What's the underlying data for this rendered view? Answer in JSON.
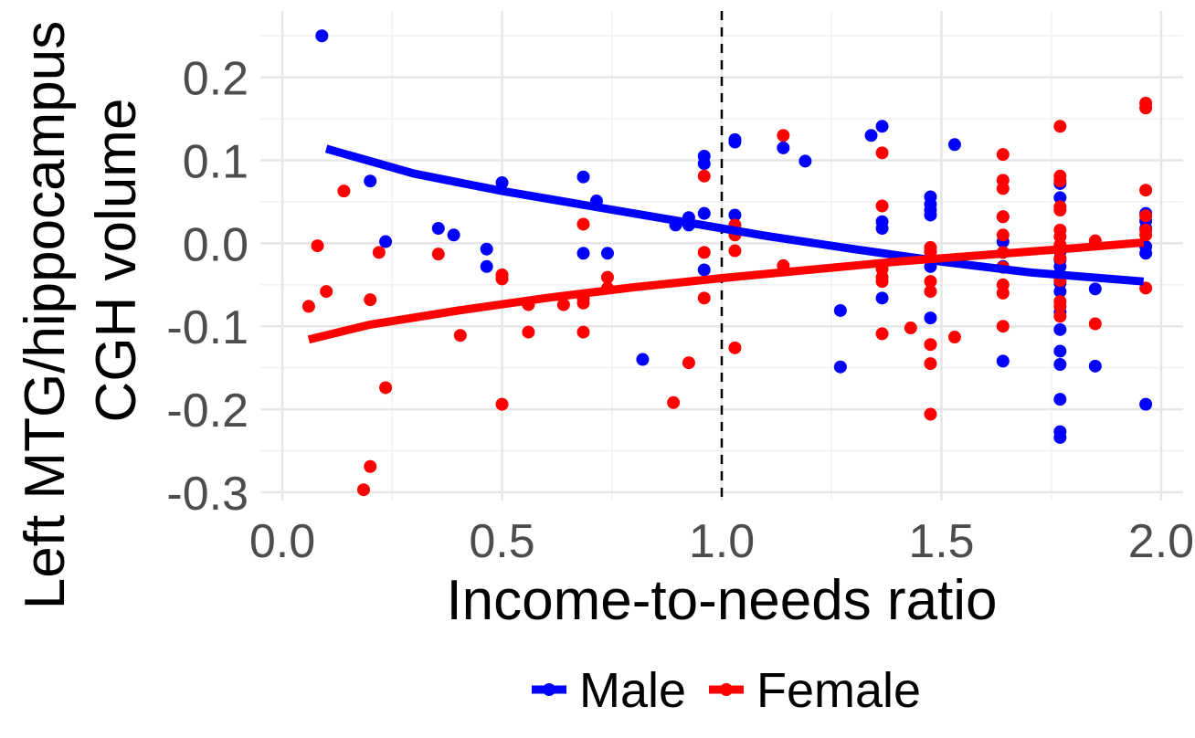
{
  "chart_data": {
    "type": "scatter",
    "title": "",
    "xlabel": "Income-to-needs ratio",
    "ylabel_lines": [
      "Left MTG/hippocampus",
      "CGH volume"
    ],
    "xlim": [
      -0.05,
      2.05
    ],
    "ylim": [
      -0.31,
      0.28
    ],
    "x_ticks": [
      0.0,
      0.5,
      1.0,
      1.5,
      2.0
    ],
    "x_tick_labels": [
      "0.0",
      "0.5",
      "1.0",
      "1.5",
      "2.0"
    ],
    "y_ticks": [
      -0.3,
      -0.2,
      -0.1,
      0.0,
      0.1,
      0.2
    ],
    "y_tick_labels": [
      "-0.3",
      "-0.2",
      "-0.1",
      "0.0",
      "0.1",
      "0.2"
    ],
    "grid": true,
    "reference_line": {
      "x": 1.0,
      "style": "dashed"
    },
    "legend": {
      "position": "bottom"
    },
    "series": [
      {
        "name": "Male",
        "color": "#0000ff",
        "points": [
          [
            0.09,
            0.25
          ],
          [
            0.2,
            0.075
          ],
          [
            0.235,
            0.002
          ],
          [
            0.355,
            0.018
          ],
          [
            0.39,
            0.01
          ],
          [
            0.465,
            -0.007
          ],
          [
            0.465,
            -0.028
          ],
          [
            0.5,
            0.073
          ],
          [
            0.685,
            0.08
          ],
          [
            0.685,
            -0.012
          ],
          [
            0.715,
            0.051
          ],
          [
            0.74,
            -0.012
          ],
          [
            0.82,
            -0.14
          ],
          [
            0.895,
            0.022
          ],
          [
            0.925,
            0.031
          ],
          [
            0.925,
            0.022
          ],
          [
            0.96,
            0.105
          ],
          [
            0.96,
            0.096
          ],
          [
            0.96,
            0.036
          ],
          [
            0.96,
            -0.032
          ],
          [
            1.03,
            0.125
          ],
          [
            1.03,
            0.122
          ],
          [
            1.03,
            0.034
          ],
          [
            1.14,
            0.115
          ],
          [
            1.19,
            0.099
          ],
          [
            1.27,
            -0.081
          ],
          [
            1.27,
            -0.149
          ],
          [
            1.34,
            0.13
          ],
          [
            1.365,
            0.141
          ],
          [
            1.365,
            0.026
          ],
          [
            1.365,
            0.018
          ],
          [
            1.365,
            -0.066
          ],
          [
            1.475,
            0.056
          ],
          [
            1.475,
            0.047
          ],
          [
            1.475,
            0.04
          ],
          [
            1.475,
            0.034
          ],
          [
            1.475,
            -0.01
          ],
          [
            1.475,
            -0.018
          ],
          [
            1.475,
            -0.028
          ],
          [
            1.475,
            -0.09
          ],
          [
            1.53,
            0.119
          ],
          [
            1.64,
            0.032
          ],
          [
            1.64,
            0.002
          ],
          [
            1.64,
            -0.028
          ],
          [
            1.64,
            -0.142
          ],
          [
            1.77,
            0.072
          ],
          [
            1.77,
            0.055
          ],
          [
            1.77,
            -0.01
          ],
          [
            1.77,
            -0.02
          ],
          [
            1.77,
            -0.028
          ],
          [
            1.77,
            -0.048
          ],
          [
            1.77,
            -0.058
          ],
          [
            1.77,
            -0.083
          ],
          [
            1.77,
            -0.104
          ],
          [
            1.77,
            -0.13
          ],
          [
            1.77,
            -0.146
          ],
          [
            1.77,
            -0.188
          ],
          [
            1.77,
            -0.227
          ],
          [
            1.77,
            -0.234
          ],
          [
            1.85,
            -0.055
          ],
          [
            1.85,
            -0.148
          ],
          [
            1.965,
            0.036
          ],
          [
            1.965,
            0.027
          ],
          [
            1.965,
            0.018
          ],
          [
            1.965,
            -0.004
          ],
          [
            1.965,
            -0.012
          ],
          [
            1.965,
            -0.194
          ]
        ],
        "trend": [
          [
            0.1,
            0.114
          ],
          [
            0.3,
            0.084
          ],
          [
            0.5,
            0.063
          ],
          [
            0.7,
            0.045
          ],
          [
            0.9,
            0.027
          ],
          [
            1.1,
            0.009
          ],
          [
            1.3,
            -0.007
          ],
          [
            1.5,
            -0.022
          ],
          [
            1.7,
            -0.035
          ],
          [
            1.96,
            -0.046
          ]
        ]
      },
      {
        "name": "Female",
        "color": "#ff0000",
        "points": [
          [
            0.06,
            -0.076
          ],
          [
            0.08,
            -0.003
          ],
          [
            0.1,
            -0.058
          ],
          [
            0.14,
            0.063
          ],
          [
            0.185,
            -0.297
          ],
          [
            0.2,
            -0.269
          ],
          [
            0.2,
            -0.068
          ],
          [
            0.22,
            -0.011
          ],
          [
            0.235,
            -0.174
          ],
          [
            0.355,
            -0.013
          ],
          [
            0.405,
            -0.111
          ],
          [
            0.5,
            -0.038
          ],
          [
            0.5,
            -0.043
          ],
          [
            0.5,
            -0.194
          ],
          [
            0.56,
            -0.074
          ],
          [
            0.56,
            -0.107
          ],
          [
            0.64,
            -0.074
          ],
          [
            0.685,
            0.023
          ],
          [
            0.685,
            -0.067
          ],
          [
            0.685,
            -0.072
          ],
          [
            0.685,
            -0.107
          ],
          [
            0.74,
            -0.041
          ],
          [
            0.74,
            -0.054
          ],
          [
            0.89,
            -0.192
          ],
          [
            0.925,
            -0.144
          ],
          [
            0.96,
            0.081
          ],
          [
            0.96,
            -0.011
          ],
          [
            0.96,
            -0.066
          ],
          [
            1.03,
            0.022
          ],
          [
            1.03,
            0.01
          ],
          [
            1.03,
            -0.009
          ],
          [
            1.03,
            -0.126
          ],
          [
            1.14,
            0.13
          ],
          [
            1.14,
            -0.027
          ],
          [
            1.365,
            0.109
          ],
          [
            1.365,
            0.045
          ],
          [
            1.365,
            -0.031
          ],
          [
            1.365,
            -0.041
          ],
          [
            1.365,
            -0.046
          ],
          [
            1.365,
            -0.109
          ],
          [
            1.43,
            -0.102
          ],
          [
            1.475,
            -0.005
          ],
          [
            1.475,
            -0.01
          ],
          [
            1.475,
            -0.046
          ],
          [
            1.475,
            -0.058
          ],
          [
            1.475,
            -0.122
          ],
          [
            1.475,
            -0.145
          ],
          [
            1.475,
            -0.206
          ],
          [
            1.53,
            -0.113
          ],
          [
            1.64,
            0.107
          ],
          [
            1.64,
            0.076
          ],
          [
            1.64,
            0.066
          ],
          [
            1.64,
            0.032
          ],
          [
            1.64,
            0.01
          ],
          [
            1.64,
            -0.011
          ],
          [
            1.64,
            -0.029
          ],
          [
            1.64,
            -0.05
          ],
          [
            1.64,
            -0.06
          ],
          [
            1.64,
            -0.1
          ],
          [
            1.77,
            0.141
          ],
          [
            1.77,
            0.081
          ],
          [
            1.77,
            0.075
          ],
          [
            1.77,
            0.044
          ],
          [
            1.77,
            0.04
          ],
          [
            1.77,
            0.016
          ],
          [
            1.77,
            0.008
          ],
          [
            1.77,
            -0.002
          ],
          [
            1.77,
            -0.018
          ],
          [
            1.77,
            -0.045
          ],
          [
            1.77,
            -0.07
          ],
          [
            1.77,
            -0.076
          ],
          [
            1.77,
            -0.088
          ],
          [
            1.85,
            0.003
          ],
          [
            1.85,
            -0.097
          ],
          [
            1.965,
            0.169
          ],
          [
            1.965,
            0.163
          ],
          [
            1.965,
            0.064
          ],
          [
            1.965,
            0.033
          ],
          [
            1.965,
            0.016
          ],
          [
            1.965,
            0.01
          ],
          [
            1.965,
            -0.054
          ]
        ],
        "trend": [
          [
            0.06,
            -0.116
          ],
          [
            0.2,
            -0.098
          ],
          [
            0.4,
            -0.081
          ],
          [
            0.6,
            -0.066
          ],
          [
            0.8,
            -0.053
          ],
          [
            1.0,
            -0.042
          ],
          [
            1.2,
            -0.032
          ],
          [
            1.4,
            -0.022
          ],
          [
            1.6,
            -0.014
          ],
          [
            1.8,
            -0.006
          ],
          [
            1.96,
            0.001
          ]
        ]
      }
    ]
  }
}
